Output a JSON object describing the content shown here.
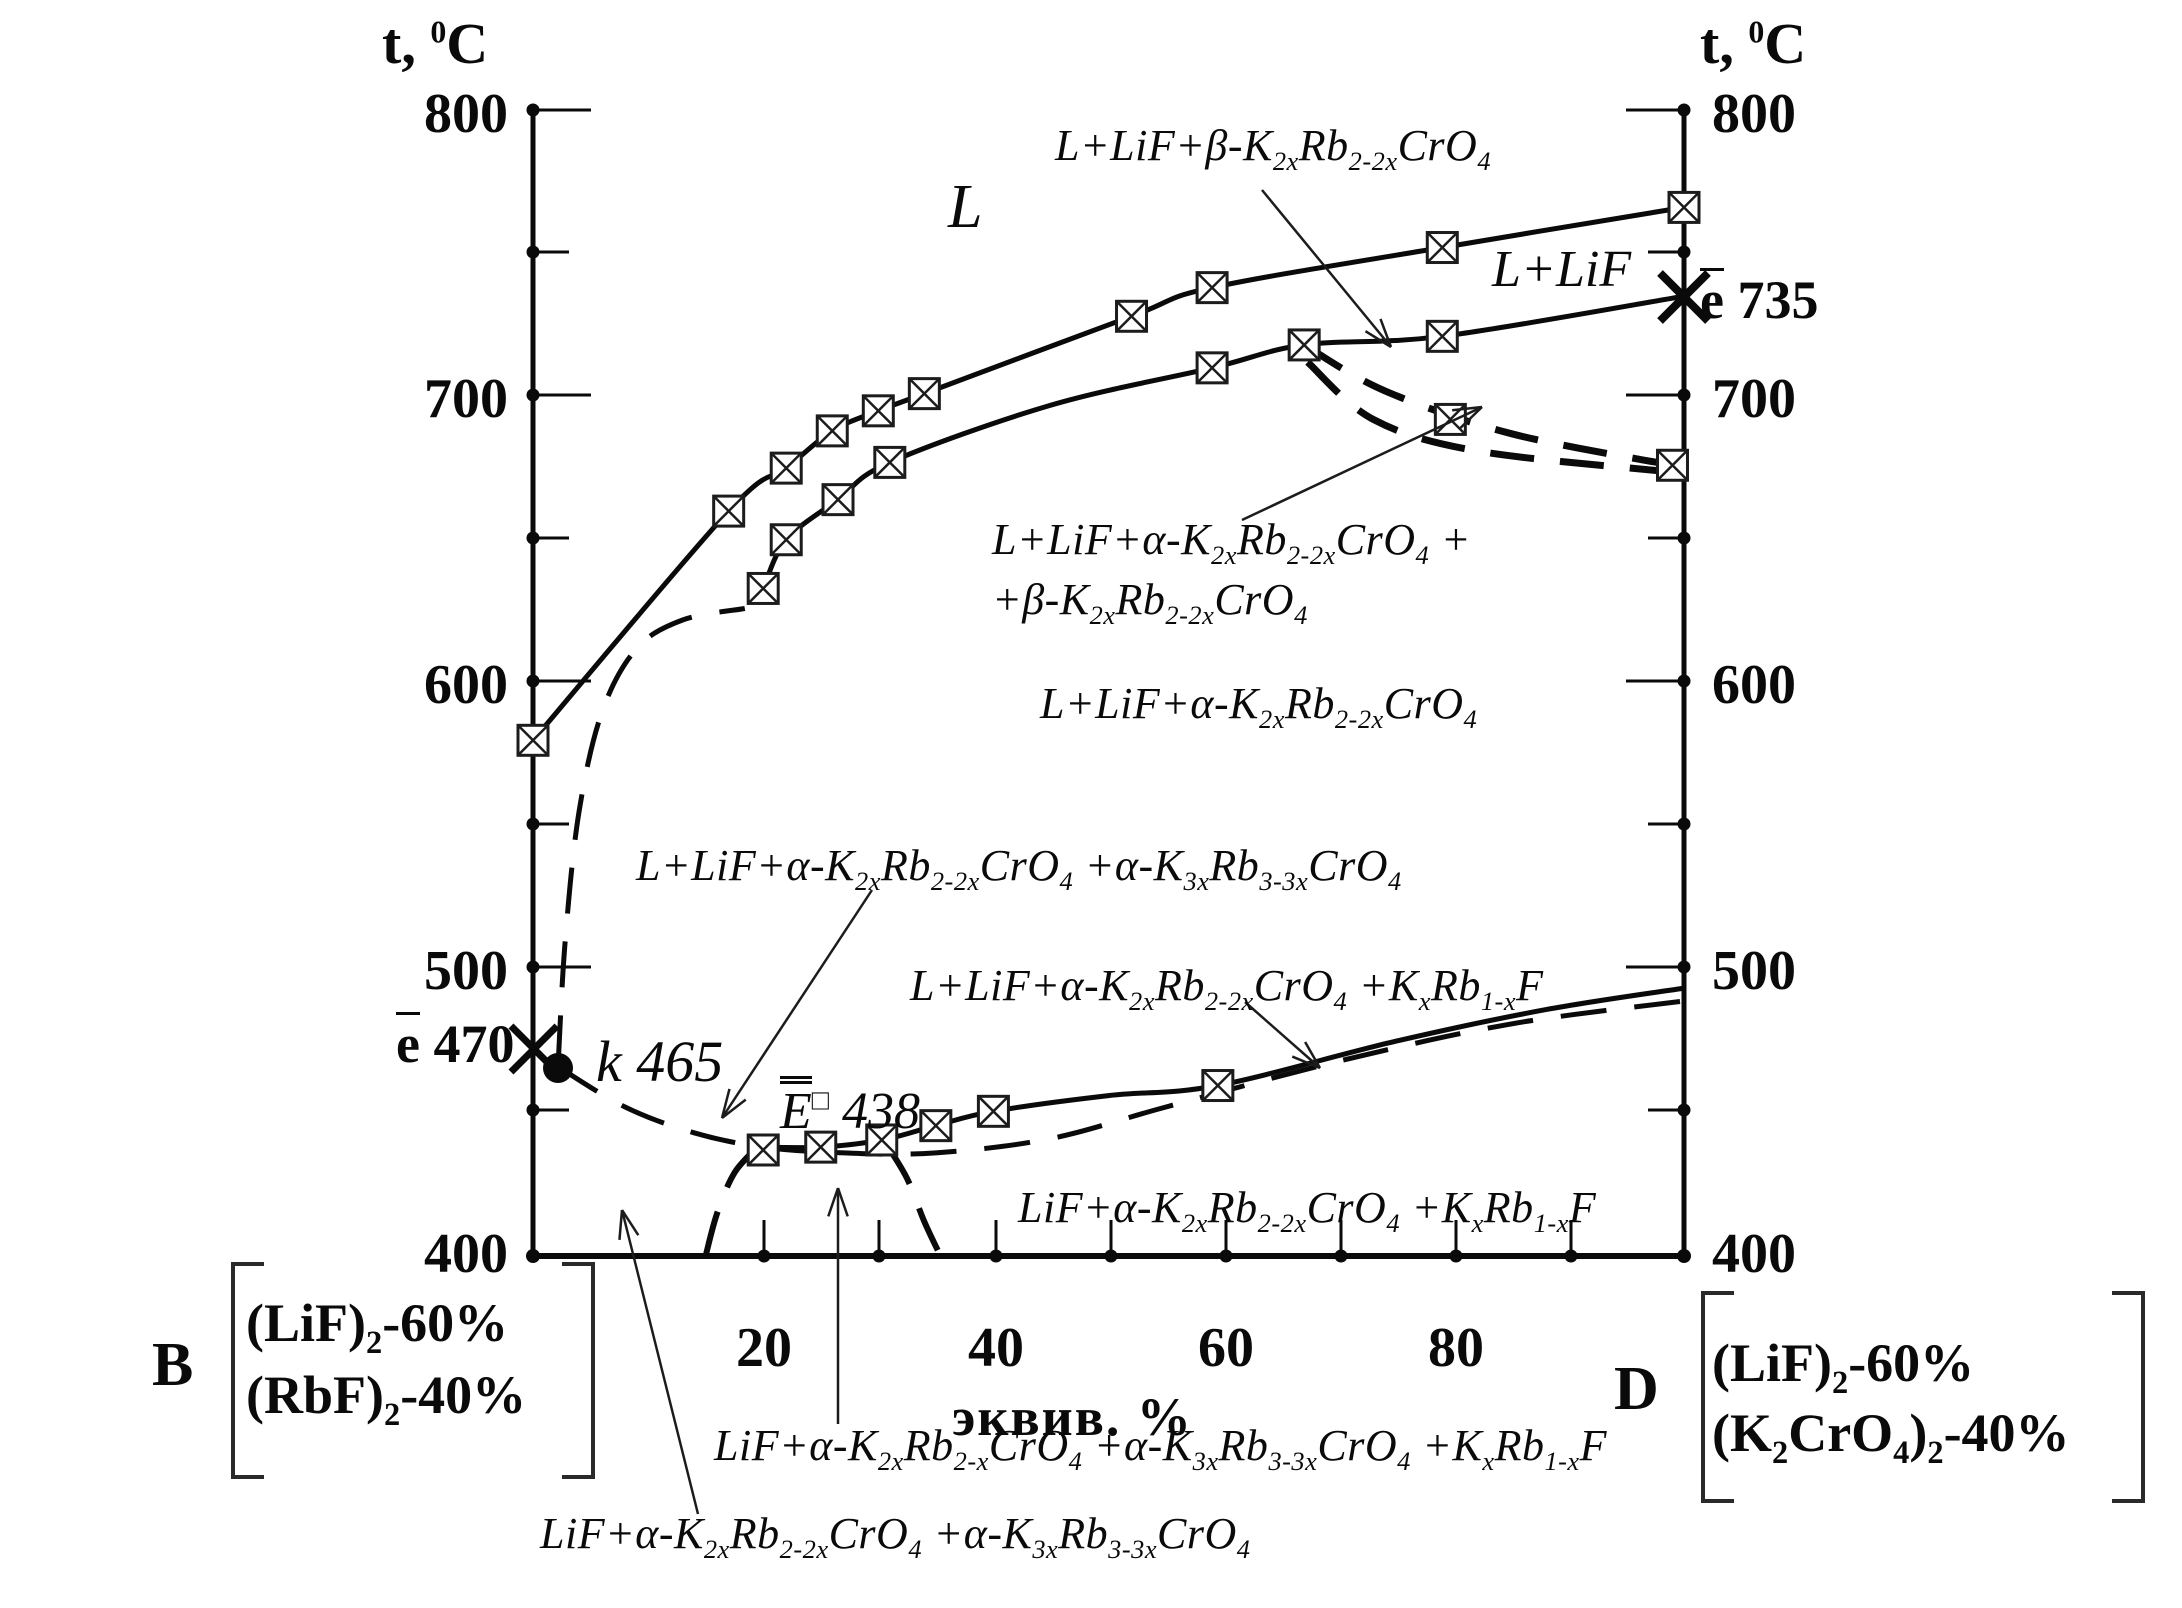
{
  "axis": {
    "y_left_title": "t, ^{0}C",
    "y_right_title": "t, ^{0}C",
    "y_ticks": [
      "800",
      "700",
      "600",
      "500",
      "400"
    ],
    "x_ticks": [
      "20",
      "40",
      "60",
      "80"
    ],
    "x_title": "эквив. %"
  },
  "regions": {
    "liquid": "L",
    "top": "L+LiF+β-K_{2x}Rb_{2-2x}CrO_{4}",
    "l_lif": "L+LiF",
    "two_line_1": "L+LiF+α-K_{2x}Rb_{2-2x}CrO_{4} +",
    "two_line_2": "+β-K_{2x}Rb_{2-2x}CrO_{4}",
    "mid": "L+LiF+α-K_{2x}Rb_{2-2x}CrO_{4}",
    "mid2": "L+LiF+α-K_{2x}Rb_{2-2x}CrO_{4} +α-K_{3x}Rb_{3-3x}CrO_{4}",
    "mid3": "L+LiF+α-K_{2x}Rb_{2-2x}CrO_{4} +K_{x}Rb_{1-x}F",
    "sub_solidus": "LiF+α-K_{2x}Rb_{2-2x}CrO_{4} +K_{x}Rb_{1-x}F",
    "bottom1": "LiF+α-K_{2x}Rb_{2-x}CrO_{4} +α-K_{3x}Rb_{3-3x}CrO_{4} +K_{x}Rb_{1-x}F",
    "bottom2": "LiF+α-K_{2x}Rb_{2-2x}CrO_{4} +α-K_{3x}Rb_{3-3x}CrO_{4}"
  },
  "points": {
    "e_right": {
      "sym": "e",
      "value": "735"
    },
    "e_left": {
      "sym": "e",
      "value": "470"
    },
    "k": {
      "value": "k 465"
    },
    "E": {
      "sym": "E",
      "sq": "□",
      "value": "438"
    }
  },
  "endmembers": {
    "B": {
      "label": "B",
      "line1": "(LiF)_{2}-60%",
      "line2": "(RbF)_{2}-40%"
    },
    "D": {
      "label": "D",
      "line1": "(LiF)_{2}-60%",
      "line2": "(K_{2}CrO_{4})_{2}-40%"
    }
  },
  "chart_data": {
    "type": "line",
    "xlabel": "эквив. %",
    "ylabel": "t, 0C",
    "xlim": [
      0,
      100
    ],
    "ylim": [
      400,
      800
    ],
    "grid": false,
    "series": [
      {
        "name": "LiF-liquidus",
        "style": "solid",
        "points": [
          [
            0,
            580
          ],
          [
            17,
            660
          ],
          [
            22,
            675
          ],
          [
            26,
            688
          ],
          [
            30,
            695
          ],
          [
            34,
            701
          ],
          [
            52,
            728
          ],
          [
            59,
            738
          ],
          [
            79,
            752
          ],
          [
            100,
            766
          ]
        ],
        "markers": [
          [
            0,
            580
          ],
          [
            17,
            660
          ],
          [
            22,
            675
          ],
          [
            26,
            688
          ],
          [
            30,
            695
          ],
          [
            34,
            701
          ],
          [
            52,
            728
          ],
          [
            59,
            738
          ],
          [
            79,
            752
          ],
          [
            100,
            766
          ]
        ]
      },
      {
        "name": "K2xRb2-2xCrO4-liquidus",
        "style": "solid",
        "points": [
          [
            20,
            633
          ],
          [
            22,
            650
          ],
          [
            26.5,
            664
          ],
          [
            31,
            677
          ],
          [
            45,
            697
          ],
          [
            59,
            710
          ],
          [
            67,
            718
          ],
          [
            79,
            721
          ],
          [
            100,
            735
          ]
        ],
        "markers": [
          [
            20,
            633
          ],
          [
            22,
            650
          ],
          [
            26.5,
            664
          ],
          [
            31,
            677
          ],
          [
            59,
            710
          ],
          [
            67,
            718
          ],
          [
            79,
            721
          ]
        ]
      },
      {
        "name": "k465-metastable-extension",
        "style": "dashed",
        "points": [
          [
            2.2,
            468
          ],
          [
            2.8,
            510
          ],
          [
            4,
            555
          ],
          [
            6,
            590
          ],
          [
            9,
            612
          ],
          [
            13,
            622
          ],
          [
            18.4,
            626
          ]
        ],
        "markers": []
      },
      {
        "name": "beta-alpha-boundary-upper",
        "style": "dashed-bold",
        "points": [
          [
            67,
            718
          ],
          [
            74,
            702
          ],
          [
            85,
            687
          ],
          [
            99,
            676
          ]
        ],
        "markers": [
          [
            79.7,
            692
          ],
          [
            99,
            676
          ]
        ]
      },
      {
        "name": "beta-alpha-boundary-lower",
        "style": "dashed-bold",
        "points": [
          [
            67.3,
            712
          ],
          [
            73,
            692
          ],
          [
            82,
            681
          ],
          [
            98,
            674
          ]
        ],
        "markers": []
      },
      {
        "name": "eutectic-and-KxRb1-xF-liquidus",
        "style": "solid",
        "points": [
          [
            19.5,
            438
          ],
          [
            25,
            438
          ],
          [
            30.3,
            440.5
          ],
          [
            35,
            445.5
          ],
          [
            40,
            450.5
          ],
          [
            50,
            456
          ],
          [
            59.5,
            459.5
          ],
          [
            75,
            475
          ],
          [
            88,
            486
          ],
          [
            100,
            493.5
          ]
        ],
        "markers": [
          [
            20,
            437
          ],
          [
            25,
            438
          ],
          [
            30.3,
            440.5
          ],
          [
            35,
            445.5
          ],
          [
            40,
            450.5
          ],
          [
            59.5,
            459.5
          ]
        ]
      },
      {
        "name": "solidus-dashed",
        "style": "dashed",
        "points": [
          [
            2.2,
            466
          ],
          [
            8,
            452
          ],
          [
            14,
            443
          ],
          [
            20,
            438
          ],
          [
            27,
            436
          ],
          [
            35,
            436
          ],
          [
            45,
            441
          ],
          [
            55,
            452
          ],
          [
            70,
            468
          ],
          [
            85,
            481
          ],
          [
            100,
            489
          ]
        ],
        "markers": []
      },
      {
        "name": "dome-left-arc",
        "style": "dome",
        "points": [
          [
            15,
            400
          ],
          [
            16,
            415
          ],
          [
            17.5,
            429
          ],
          [
            19.5,
            438
          ]
        ],
        "markers": []
      },
      {
        "name": "dome-right-arc",
        "style": "dome",
        "points": [
          [
            30.7,
            439
          ],
          [
            32.5,
            427
          ],
          [
            34,
            412
          ],
          [
            35.4,
            400
          ]
        ],
        "markers": []
      }
    ],
    "special_points": [
      {
        "name": "e-470",
        "symbol": "x-cross",
        "x": 0,
        "t": 470
      },
      {
        "name": "k-465",
        "symbol": "filled-dot",
        "x": 2.2,
        "t": 465
      },
      {
        "name": "E-438",
        "symbol": "label-only",
        "x": 27,
        "t": 438
      },
      {
        "name": "e-735",
        "symbol": "x-cross",
        "x": 100,
        "t": 735
      }
    ]
  }
}
